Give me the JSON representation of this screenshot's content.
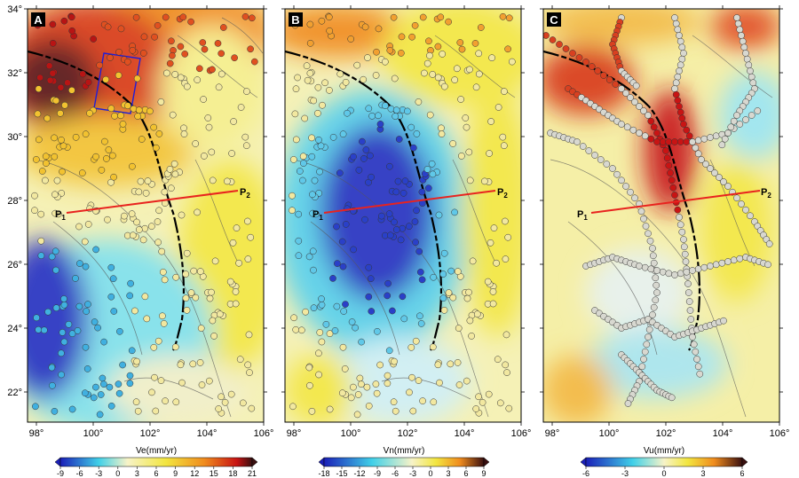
{
  "figure": {
    "panels": [
      {
        "id": "A",
        "label": "A",
        "colorbar_title": "Ve(mm/yr)",
        "colorbar_ticks": [
          "-9",
          "-6",
          "-3",
          "0",
          "3",
          "6",
          "9",
          "12",
          "15",
          "18",
          "21"
        ]
      },
      {
        "id": "B",
        "label": "B",
        "colorbar_title": "Vn(mm/yr)",
        "colorbar_ticks": [
          "-18",
          "-15",
          "-12",
          "-9",
          "-6",
          "-3",
          "0",
          "3",
          "6",
          "9"
        ]
      },
      {
        "id": "C",
        "label": "C",
        "colorbar_title": "Vu(mm/yr)",
        "colorbar_ticks": [
          "-6",
          "-3",
          "0",
          "3",
          "6"
        ]
      }
    ],
    "lon_ticks": [
      "98°",
      "100°",
      "102°",
      "104°",
      "106°"
    ],
    "lat_ticks": [
      "34°",
      "32°",
      "30°",
      "28°",
      "26°",
      "24°",
      "22°"
    ],
    "profile": {
      "start": "P",
      "start_sub": "1",
      "end": "P",
      "end_sub": "2",
      "color": "#e8231f"
    },
    "colors": {
      "cold": "#1a1fb8",
      "cyan": "#40d0e8",
      "neutral": "#f7f3c8",
      "yellow": "#f2e640",
      "orange": "#f08c1e",
      "red": "#c81414",
      "darkred": "#3a1010"
    }
  }
}
